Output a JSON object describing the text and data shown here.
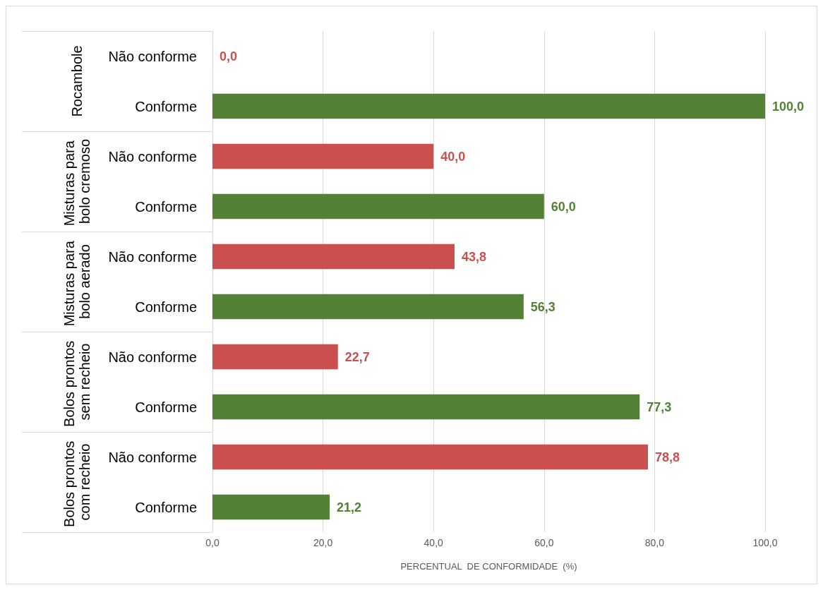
{
  "chart_data": {
    "type": "bar",
    "orientation": "horizontal",
    "xlabel": "PERCENTUAL  DE CONFORMIDADE  (%)",
    "categories": [
      "Não conforme",
      "Conforme",
      "Não conforme",
      "Conforme",
      "Não conforme",
      "Conforme",
      "Não conforme",
      "Conforme",
      "Não conforme",
      "Conforme"
    ],
    "values": [
      0.0,
      100.0,
      40.0,
      60.0,
      43.8,
      56.3,
      22.7,
      77.3,
      78.8,
      21.2
    ],
    "colors": [
      "#c9504f",
      "#538135",
      "#c9504f",
      "#538135",
      "#c9504f",
      "#538135",
      "#c9504f",
      "#538135",
      "#c9504f",
      "#538135"
    ],
    "value_labels": [
      "0,0",
      "100,0",
      "40,0",
      "60,0",
      "43,8",
      "56,3",
      "22,7",
      "77,3",
      "78,8",
      "21,2"
    ],
    "annotations": [
      "Rocambole",
      "Misturas para bolo cremoso",
      "Misturas para bolo aerado",
      "Bolos prontos sem recheio",
      "Bolos prontos com recheio"
    ],
    "xlim": [
      0,
      100
    ],
    "xticks": [
      {
        "value": 0,
        "label": "0,0"
      },
      {
        "value": 20,
        "label": "20,0"
      },
      {
        "value": 40,
        "label": "40,0"
      },
      {
        "value": 60,
        "label": "60,0"
      },
      {
        "value": 80,
        "label": "80,0"
      },
      {
        "value": 100,
        "label": "100,0"
      }
    ],
    "grid": "x"
  }
}
